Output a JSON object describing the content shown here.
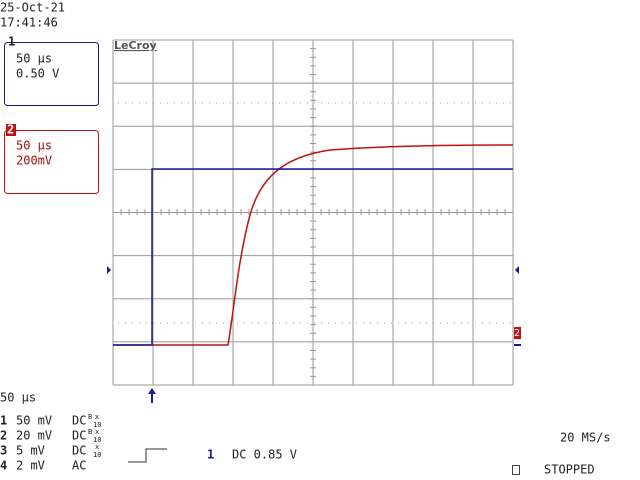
{
  "header": {
    "date": "25-Oct-21",
    "time": "17:41:46"
  },
  "logo": "LeCroy",
  "channel_boxes": [
    {
      "number": "1",
      "timebase": "50 µs",
      "scale": "0.50 V"
    },
    {
      "number": "2",
      "timebase": "50 µs",
      "scale": "200mV"
    }
  ],
  "trace_marker": "2",
  "footer": {
    "timebase": "50 µs",
    "rows": [
      {
        "number": "1",
        "volts": "50 mV",
        "coupling": "DC",
        "bw": "B",
        "probe_x": "x",
        "probe_factor": "10"
      },
      {
        "number": "2",
        "volts": "20 mV",
        "coupling": "DC",
        "bw": "B",
        "probe_x": "x",
        "probe_factor": "10"
      },
      {
        "number": "3",
        "volts": "5 mV",
        "coupling": "DC",
        "probe_x": "x",
        "probe_factor": "10"
      },
      {
        "number": "4",
        "volts": "2 mV",
        "coupling": "AC"
      }
    ],
    "sample_rate": "20 MS/s",
    "trigger_channel": "1",
    "trigger_level": "DC 0.85 V",
    "status": "STOPPED"
  }
}
